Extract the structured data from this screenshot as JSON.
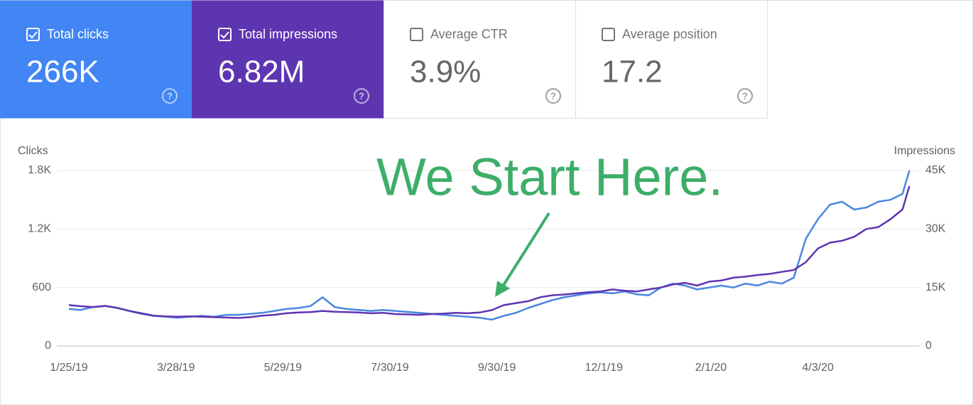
{
  "cards": [
    {
      "label": "Total clicks",
      "value": "266K"
    },
    {
      "label": "Total impressions",
      "value": "6.82M"
    },
    {
      "label": "Average CTR",
      "value": "3.9%"
    },
    {
      "label": "Average position",
      "value": "17.2"
    }
  ],
  "chart_data": {
    "type": "line",
    "annotation": "We Start Here.",
    "y_label": "Clicks",
    "y2_label": "Impressions",
    "x": [
      "1/25/19",
      "2/1/19",
      "2/8/19",
      "2/15/19",
      "2/22/19",
      "3/1/19",
      "3/8/19",
      "3/15/19",
      "3/22/19",
      "3/29/19",
      "4/5/19",
      "4/12/19",
      "4/19/19",
      "4/26/19",
      "5/3/19",
      "5/10/19",
      "5/17/19",
      "5/24/19",
      "5/31/19",
      "6/7/19",
      "6/14/19",
      "6/21/19",
      "6/28/19",
      "7/5/19",
      "7/12/19",
      "7/19/19",
      "7/26/19",
      "8/2/19",
      "8/9/19",
      "8/16/19",
      "8/23/19",
      "8/30/19",
      "9/6/19",
      "9/13/19",
      "9/20/19",
      "9/27/19",
      "10/4/19",
      "10/11/19",
      "10/18/19",
      "10/25/19",
      "11/1/19",
      "11/8/19",
      "11/15/19",
      "11/22/19",
      "11/29/19",
      "12/6/19",
      "12/13/19",
      "12/20/19",
      "12/27/19",
      "1/3/20",
      "1/10/20",
      "1/17/20",
      "1/24/20",
      "1/31/20",
      "2/7/20",
      "2/14/20",
      "2/21/20",
      "2/28/20",
      "3/6/20",
      "3/13/20",
      "3/20/20",
      "3/27/20",
      "4/3/20",
      "4/10/20",
      "4/17/20",
      "4/24/20",
      "5/1/20",
      "5/8/20",
      "5/15/20",
      "5/22/20",
      "5/26/20"
    ],
    "xlim": [
      "1/18/19",
      "6/1/20"
    ],
    "xticks": [
      "1/25/19",
      "3/28/19",
      "5/29/19",
      "7/30/19",
      "9/30/19",
      "12/1/19",
      "2/1/20",
      "4/3/20"
    ],
    "series": [
      {
        "name": "Clicks",
        "color": "#4a86e0",
        "values": [
          380,
          370,
          400,
          410,
          390,
          360,
          330,
          310,
          300,
          290,
          300,
          310,
          300,
          320,
          320,
          330,
          340,
          360,
          380,
          390,
          410,
          500,
          400,
          380,
          370,
          360,
          370,
          360,
          350,
          340,
          330,
          320,
          310,
          300,
          290,
          270,
          310,
          340,
          390,
          430,
          470,
          500,
          520,
          540,
          550,
          540,
          560,
          530,
          520,
          600,
          640,
          620,
          580,
          600,
          620,
          600,
          640,
          620,
          660,
          640,
          700,
          1100,
          1300,
          1450,
          1480,
          1400,
          1420,
          1480,
          1500,
          1560,
          1800
        ]
      },
      {
        "name": "Impressions",
        "color": "#5e35b1",
        "axis": "y2",
        "values": [
          10500,
          10200,
          10000,
          10300,
          9800,
          9000,
          8400,
          7800,
          7600,
          7500,
          7600,
          7500,
          7400,
          7300,
          7200,
          7400,
          7800,
          8000,
          8400,
          8600,
          8700,
          9000,
          8800,
          8700,
          8600,
          8400,
          8500,
          8200,
          8100,
          8000,
          8200,
          8300,
          8500,
          8400,
          8600,
          9200,
          10500,
          11000,
          11500,
          12500,
          13000,
          13200,
          13500,
          13800,
          14000,
          14500,
          14200,
          14000,
          14500,
          15000,
          15800,
          16200,
          15500,
          16500,
          16800,
          17500,
          17800,
          18200,
          18500,
          19000,
          19500,
          21500,
          25000,
          26500,
          27000,
          28000,
          30000,
          30500,
          32500,
          35000,
          41000
        ]
      }
    ],
    "ylim": [
      0,
      1800
    ],
    "yticks": [
      0,
      600,
      {
        "value": 1200,
        "label": "1.2K"
      },
      {
        "value": 1800,
        "label": "1.8K"
      }
    ],
    "y2lim": [
      0,
      45000
    ],
    "y2ticks": [
      0,
      {
        "value": 15000,
        "label": "15K"
      },
      {
        "value": 30000,
        "label": "30K"
      },
      {
        "value": 45000,
        "label": "45K"
      }
    ],
    "grid": true
  }
}
